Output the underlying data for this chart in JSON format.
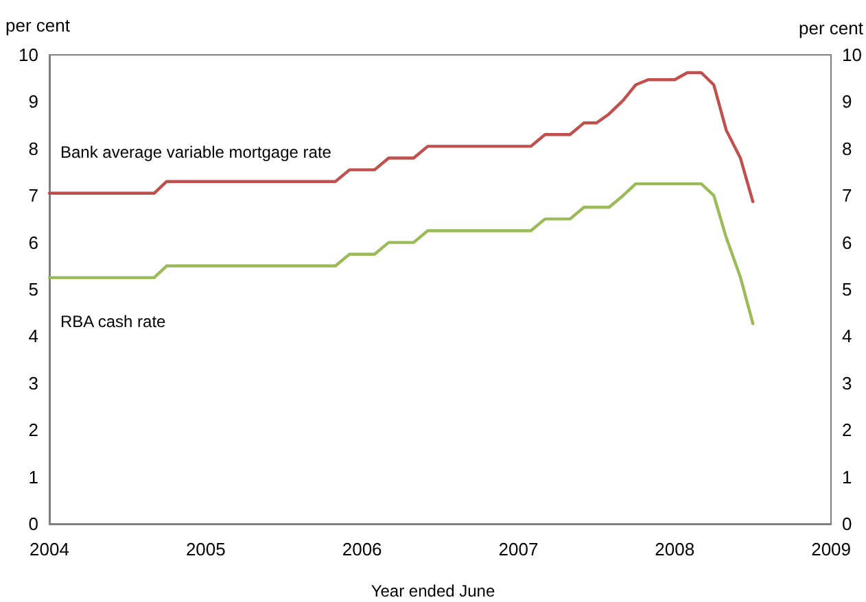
{
  "chart_data": {
    "type": "line",
    "xlabel": "Year ended June",
    "ylabel": "per cent",
    "y2label": "per cent",
    "x": [
      2004,
      2004.08,
      2004.17,
      2004.25,
      2004.33,
      2004.42,
      2004.5,
      2004.58,
      2004.67,
      2004.75,
      2004.83,
      2004.92,
      2005,
      2005.08,
      2005.17,
      2005.25,
      2005.33,
      2005.42,
      2005.5,
      2005.58,
      2005.67,
      2005.75,
      2005.83,
      2005.92,
      2006,
      2006.08,
      2006.17,
      2006.25,
      2006.33,
      2006.42,
      2006.5,
      2006.58,
      2006.67,
      2006.75,
      2006.83,
      2006.92,
      2007,
      2007.08,
      2007.17,
      2007.25,
      2007.33,
      2007.42,
      2007.5,
      2007.58,
      2007.67,
      2007.75,
      2007.83,
      2007.92,
      2008,
      2008.08,
      2008.17,
      2008.25,
      2008.33,
      2008.42,
      2008.5
    ],
    "series": [
      {
        "name": "Bank average variable mortgage rate",
        "color": "#c0504d",
        "values": [
          7.05,
          7.05,
          7.05,
          7.05,
          7.05,
          7.05,
          7.05,
          7.05,
          7.05,
          7.3,
          7.3,
          7.3,
          7.3,
          7.3,
          7.3,
          7.3,
          7.3,
          7.3,
          7.3,
          7.3,
          7.3,
          7.3,
          7.3,
          7.55,
          7.55,
          7.55,
          7.8,
          7.8,
          7.8,
          8.05,
          8.05,
          8.05,
          8.05,
          8.05,
          8.05,
          8.05,
          8.05,
          8.05,
          8.3,
          8.3,
          8.3,
          8.55,
          8.55,
          8.74,
          9.03,
          9.36,
          9.47,
          9.47,
          9.47,
          9.62,
          9.62,
          9.36,
          8.39,
          7.8,
          6.87
        ]
      },
      {
        "name": "RBA cash rate",
        "color": "#9bbb59",
        "values": [
          5.25,
          5.25,
          5.25,
          5.25,
          5.25,
          5.25,
          5.25,
          5.25,
          5.25,
          5.5,
          5.5,
          5.5,
          5.5,
          5.5,
          5.5,
          5.5,
          5.5,
          5.5,
          5.5,
          5.5,
          5.5,
          5.5,
          5.5,
          5.75,
          5.75,
          5.75,
          6.0,
          6.0,
          6.0,
          6.25,
          6.25,
          6.25,
          6.25,
          6.25,
          6.25,
          6.25,
          6.25,
          6.25,
          6.5,
          6.5,
          6.5,
          6.75,
          6.75,
          6.75,
          7.0,
          7.25,
          7.25,
          7.25,
          7.25,
          7.25,
          7.25,
          7.0,
          6.1,
          5.26,
          4.27
        ]
      }
    ],
    "xlim": [
      2004,
      2009
    ],
    "xticks": [
      2004,
      2005,
      2006,
      2007,
      2008,
      2009
    ],
    "ylim": [
      0,
      10
    ],
    "yticks": [
      0,
      1,
      2,
      3,
      4,
      5,
      6,
      7,
      8,
      9,
      10
    ],
    "y2lim": [
      0,
      10
    ],
    "y2ticks": [
      0,
      1,
      2,
      3,
      4,
      5,
      6,
      7,
      8,
      9,
      10
    ],
    "grid": false,
    "legend": false,
    "marker": "none",
    "line_style": "solid"
  }
}
